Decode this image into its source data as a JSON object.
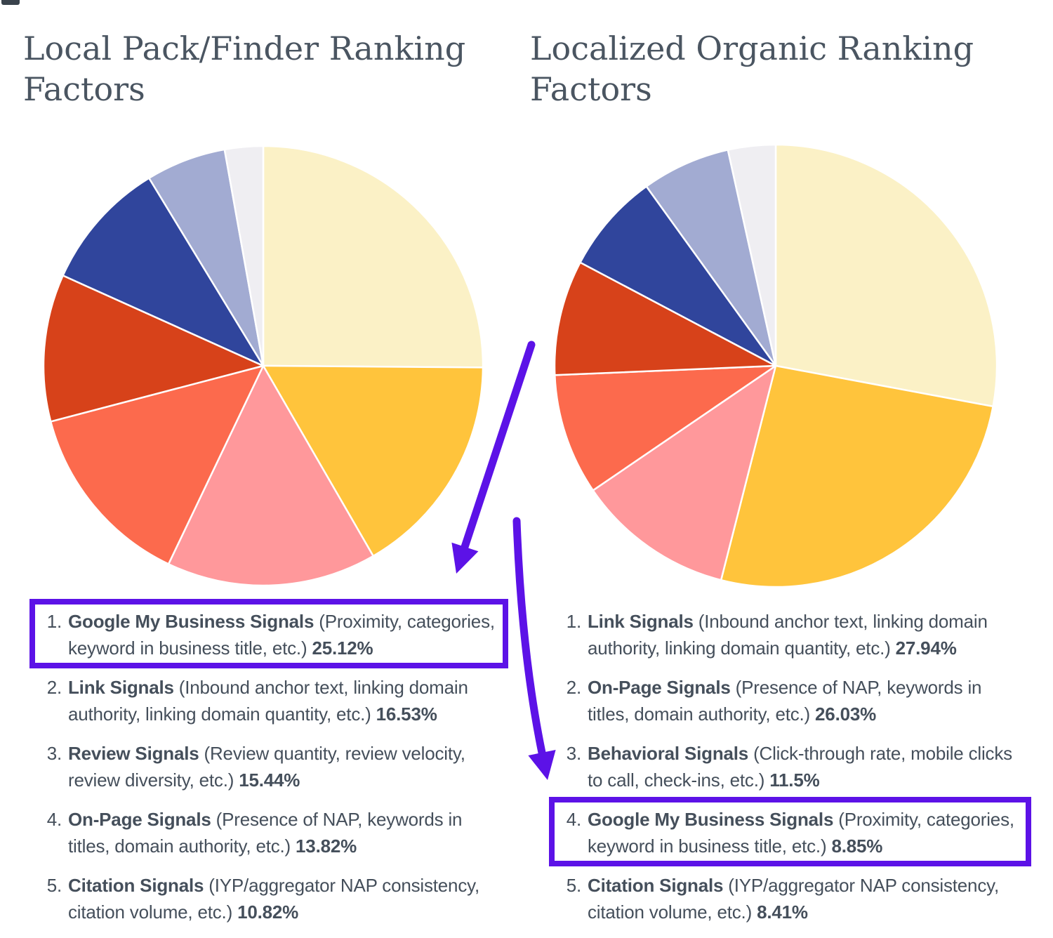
{
  "colors": {
    "accent_purple": "#5C12E7",
    "text_dark": "#454F5B",
    "title_color": "#4A5561",
    "pie_slice_stroke": "#FFFFFF",
    "background": "#FFFFFF"
  },
  "sections": {
    "left": {
      "title": "Local Pack/Finder Ranking Factors",
      "items": [
        {
          "rank": "1",
          "name": "Google My Business Signals",
          "detail": "(Proximity, categories, keyword in business title, etc.)",
          "value_label": "25.12%",
          "highlighted": true
        },
        {
          "rank": "2",
          "name": "Link Signals",
          "detail": "(Inbound anchor text, linking domain authority, linking domain quantity, etc.)",
          "value_label": "16.53%",
          "highlighted": false
        },
        {
          "rank": "3",
          "name": "Review Signals",
          "detail": "(Review quantity, review velocity, review diversity, etc.)",
          "value_label": "15.44%",
          "highlighted": false
        },
        {
          "rank": "4",
          "name": "On-Page Signals",
          "detail": "(Presence of NAP, keywords in titles, domain authority, etc.)",
          "value_label": "13.82%",
          "highlighted": false
        },
        {
          "rank": "5",
          "name": "Citation Signals",
          "detail": "(IYP/aggregator NAP consistency, citation volume, etc.)",
          "value_label": "10.82%",
          "highlighted": false
        }
      ]
    },
    "right": {
      "title": "Localized Organic Ranking Factors",
      "items": [
        {
          "rank": "1",
          "name": "Link Signals",
          "detail": "(Inbound anchor text, linking domain authority, linking domain quantity, etc.)",
          "value_label": "27.94%",
          "highlighted": false
        },
        {
          "rank": "2",
          "name": "On-Page Signals",
          "detail": "(Presence of NAP, keywords in titles, domain authority, etc.)",
          "value_label": "26.03%",
          "highlighted": false
        },
        {
          "rank": "3",
          "name": "Behavioral Signals",
          "detail": "(Click-through rate, mobile clicks to call, check-ins, etc.)",
          "value_label": "11.5%",
          "highlighted": false
        },
        {
          "rank": "4",
          "name": "Google My Business Signals",
          "detail": "(Proximity, categories, keyword in business title, etc.)",
          "value_label": "8.85%",
          "highlighted": true
        },
        {
          "rank": "5",
          "name": "Citation Signals",
          "detail": "(IYP/aggregator NAP consistency, citation volume, etc.)",
          "value_label": "8.41%",
          "highlighted": false
        }
      ]
    }
  },
  "chart_data": [
    {
      "type": "pie",
      "title": "Local Pack/Finder Ranking Factors",
      "start_angle_deg_from_north": 0,
      "direction": "clockwise",
      "legend": "none",
      "slices": [
        {
          "label": "Google My Business Signals",
          "value": 25.12,
          "pct_label": "25.12%",
          "color": "#FBF1C6"
        },
        {
          "label": "Link Signals",
          "value": 16.53,
          "pct_label": "16.53%",
          "color": "#FFC43C"
        },
        {
          "label": "Review Signals",
          "value": 15.44,
          "pct_label": "15.44%",
          "color": "#FF989B"
        },
        {
          "label": "On-Page Signals",
          "value": 13.82,
          "pct_label": "13.82%",
          "color": "#FC6A4D"
        },
        {
          "label": "Citation Signals",
          "value": 10.82,
          "pct_label": "10.82%",
          "color": "#D7421A"
        },
        {
          "label": "",
          "value": 9.56,
          "pct_label": "",
          "color": "#30459C"
        },
        {
          "label": "",
          "value": 5.88,
          "pct_label": "",
          "color": "#A2ABD2"
        },
        {
          "label": "",
          "value": 2.82,
          "pct_label": "",
          "color": "#EFEEF2"
        }
      ]
    },
    {
      "type": "pie",
      "title": "Localized Organic Ranking Factors",
      "start_angle_deg_from_north": 0,
      "direction": "clockwise",
      "legend": "none",
      "slices": [
        {
          "label": "Link Signals",
          "value": 27.94,
          "pct_label": "27.94%",
          "color": "#FBF1C6"
        },
        {
          "label": "On-Page Signals",
          "value": 26.03,
          "pct_label": "26.03%",
          "color": "#FFC43C"
        },
        {
          "label": "Behavioral Signals",
          "value": 11.5,
          "pct_label": "11.5%",
          "color": "#FF989B"
        },
        {
          "label": "Google My Business Signals",
          "value": 8.85,
          "pct_label": "8.85%",
          "color": "#FC6A4D"
        },
        {
          "label": "Citation Signals",
          "value": 8.41,
          "pct_label": "8.41%",
          "color": "#D7421A"
        },
        {
          "label": "",
          "value": 7.32,
          "pct_label": "",
          "color": "#30459C"
        },
        {
          "label": "",
          "value": 6.47,
          "pct_label": "",
          "color": "#A2ABD2"
        },
        {
          "label": "",
          "value": 3.47,
          "pct_label": "",
          "color": "#EFEEF2"
        }
      ]
    }
  ],
  "annotations": {
    "arrows": [
      {
        "name": "arrow-to-left-gmb-highlight"
      },
      {
        "name": "arrow-to-right-gmb-highlight"
      }
    ]
  }
}
